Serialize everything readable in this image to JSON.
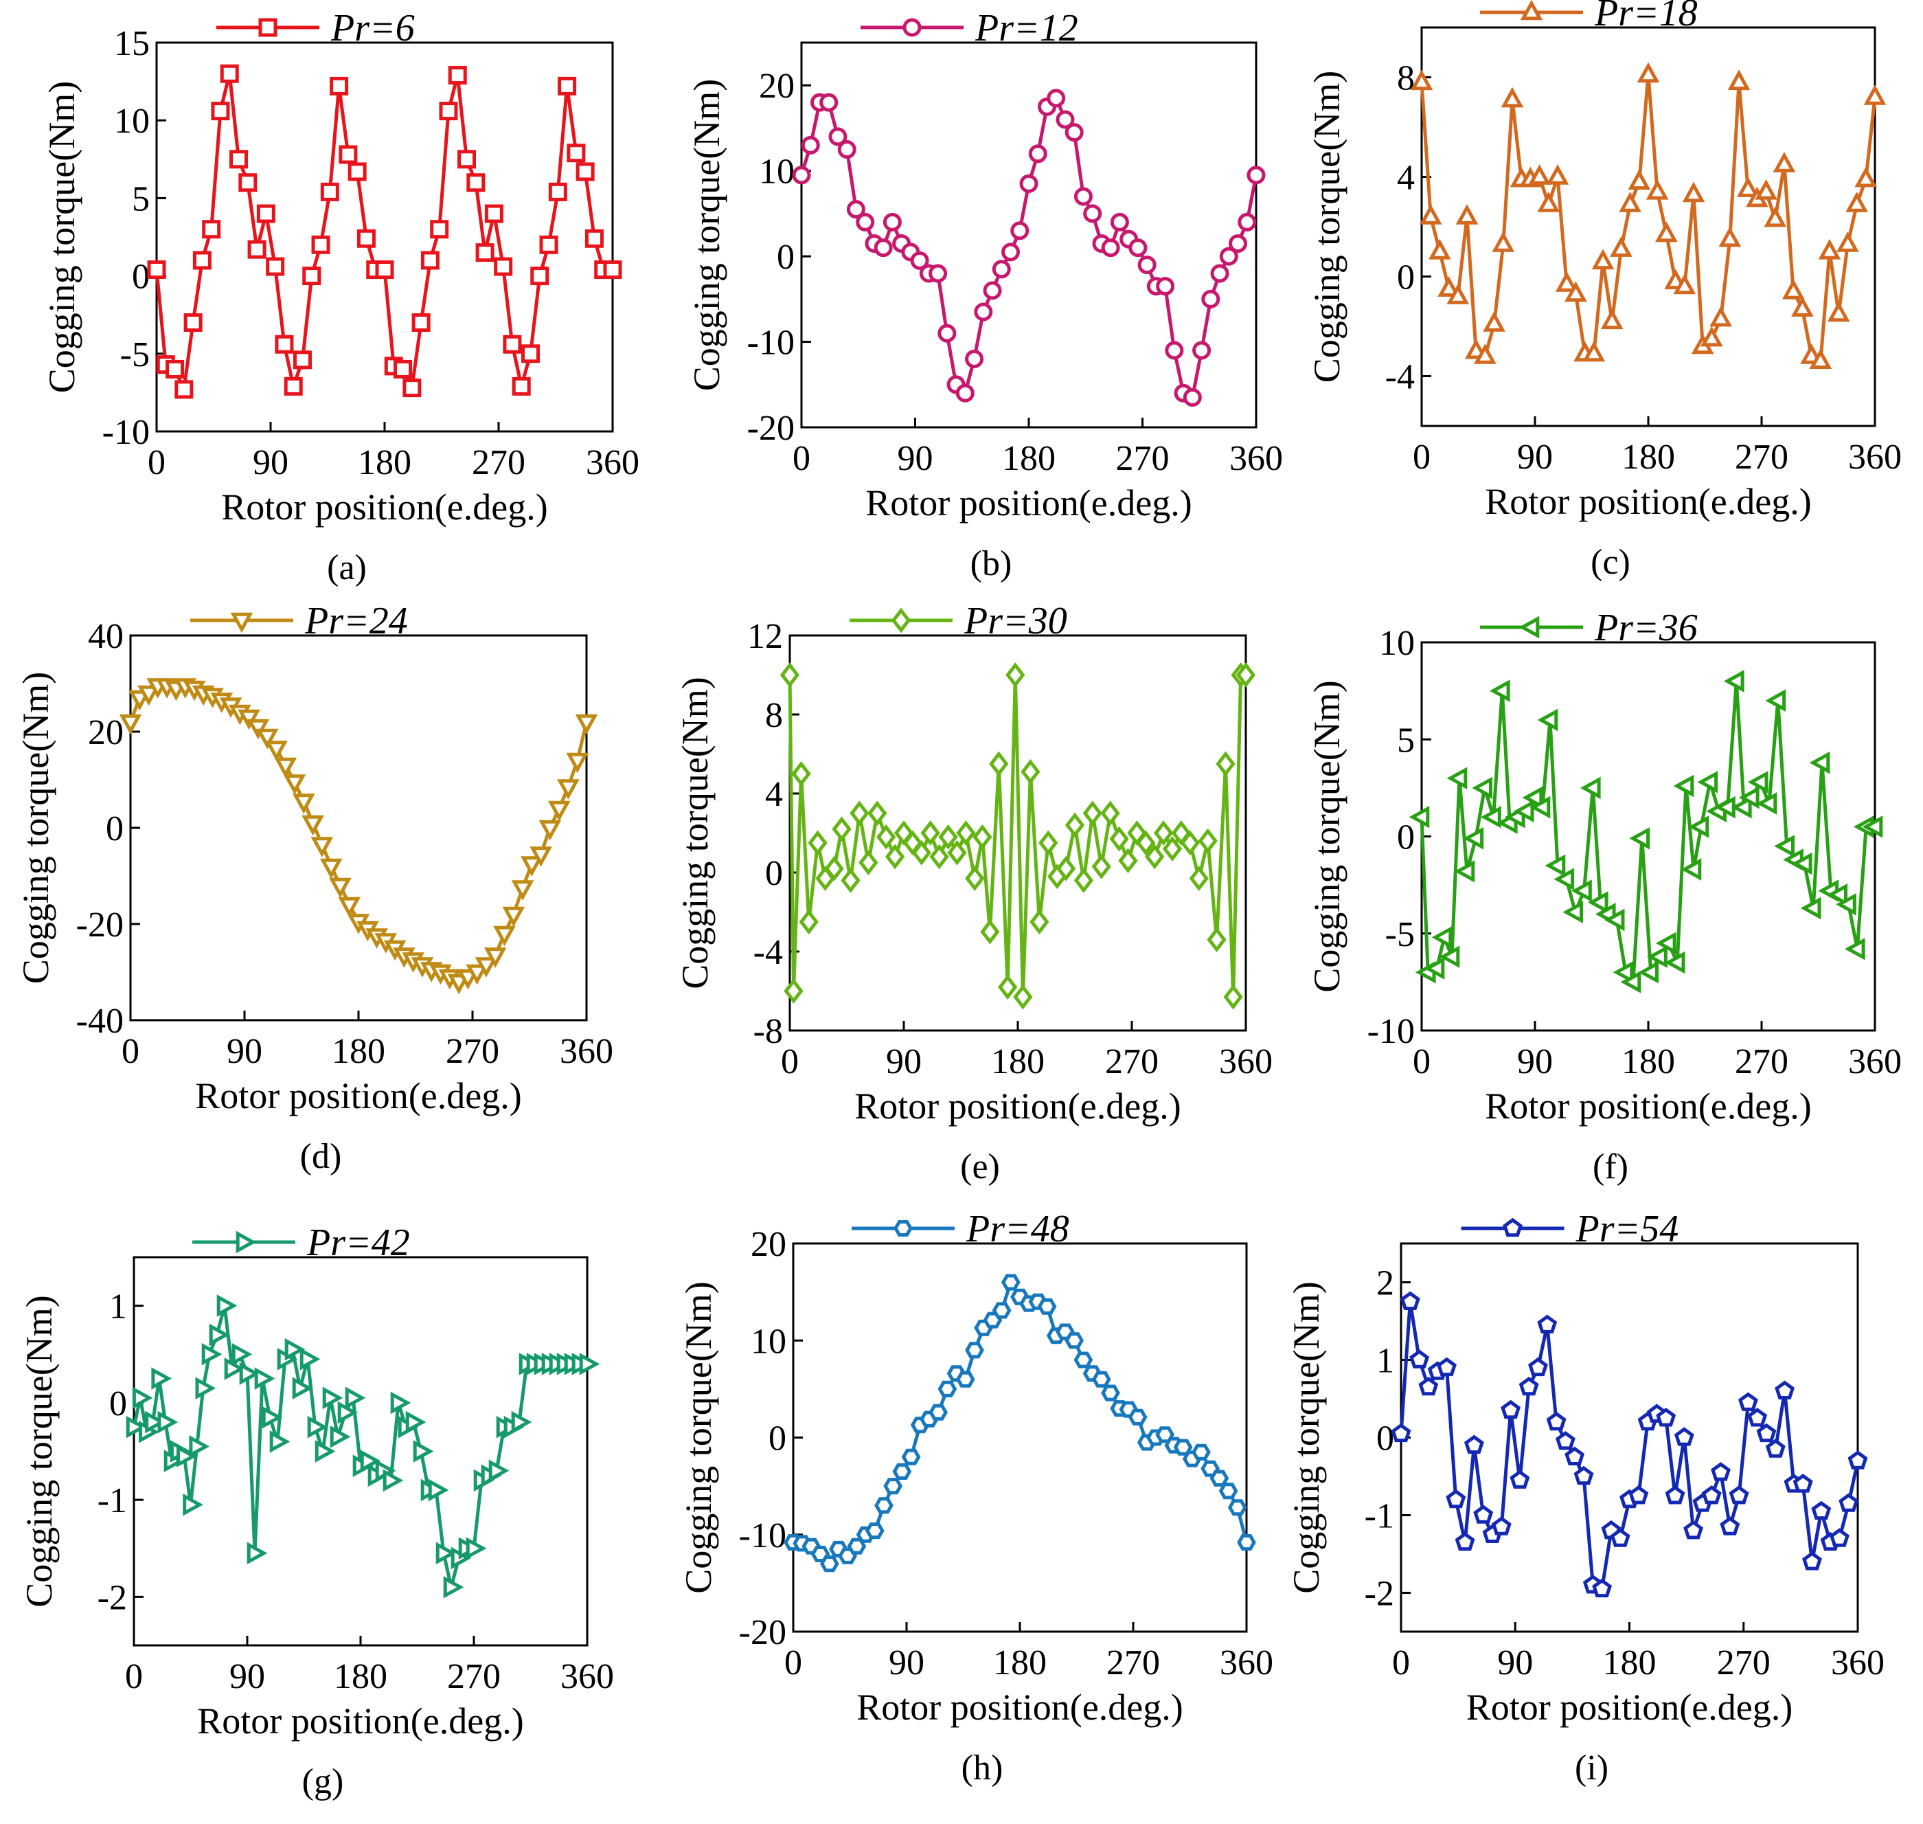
{
  "figure": {
    "x_axis_label": "Rotor position(e.deg.)",
    "y_axis_label": "Cogging torque(Nm)",
    "legend_prefix": "Pr="
  },
  "chart_data": [
    {
      "type": "line",
      "caption": "(a)",
      "legend": "Pr=6",
      "color": "#e8141c",
      "marker": "square",
      "xlabel": "Rotor position(e.deg.)",
      "ylabel": "Cogging torque(Nm)",
      "xlim": [
        0,
        360
      ],
      "ylim": [
        -10,
        15
      ],
      "xticks": [
        0,
        90,
        180,
        270,
        360
      ],
      "yticks": [
        -10,
        -5,
        0,
        5,
        10,
        15
      ],
      "x": [
        0,
        7.2,
        14.4,
        21.6,
        28.8,
        36,
        43.2,
        50.4,
        57.6,
        64.8,
        72,
        79.2,
        86.4,
        93.6,
        100.8,
        108,
        115.2,
        122.4,
        129.6,
        136.8,
        144,
        151.2,
        158.4,
        165.6,
        172.8,
        180,
        187.2,
        194.4,
        201.6,
        208.8,
        216,
        223.2,
        230.4,
        237.6,
        244.8,
        252,
        259.2,
        266.4,
        273.6,
        280.8,
        288,
        295.2,
        302.4,
        309.6,
        316.8,
        324,
        331.2,
        338.4,
        345.6,
        352.8,
        360
      ],
      "y": [
        0.4,
        -5.7,
        -6,
        -7.3,
        -3,
        1,
        3,
        10.6,
        13,
        7.5,
        6,
        1.7,
        4,
        0.6,
        -4.4,
        -7.1,
        -5.4,
        0,
        2,
        5.4,
        12.2,
        7.8,
        6.7,
        2.4,
        0.4,
        0.4,
        -5.8,
        -6,
        -7.2,
        -3,
        1,
        3,
        10.6,
        12.9,
        7.5,
        6,
        1.5,
        4,
        0.6,
        -4.4,
        -7.1,
        -5,
        0,
        2,
        5.4,
        12.2,
        7.9,
        6.7,
        2.4,
        0.4,
        0.4
      ]
    },
    {
      "type": "line",
      "caption": "(b)",
      "legend": "Pr=12",
      "color": "#c8186e",
      "marker": "circle",
      "xlabel": "Rotor position(e.deg.)",
      "ylabel": "Cogging torque(Nm)",
      "xlim": [
        0,
        360
      ],
      "ylim": [
        -20,
        25
      ],
      "xticks": [
        0,
        90,
        180,
        270,
        360
      ],
      "yticks": [
        -20,
        -10,
        0,
        10,
        20
      ],
      "x": [
        0,
        7.2,
        14.4,
        21.6,
        28.8,
        36,
        43.2,
        50.4,
        57.6,
        64.8,
        72,
        79.2,
        86.4,
        93.6,
        100.8,
        108,
        115.2,
        122.4,
        129.6,
        136.8,
        144,
        151.2,
        158.4,
        165.6,
        172.8,
        180,
        187.2,
        194.4,
        201.6,
        208.8,
        216,
        223.2,
        230.4,
        237.6,
        244.8,
        252,
        259.2,
        266.4,
        273.6,
        280.8,
        288,
        295.2,
        302.4,
        309.6,
        316.8,
        324,
        331.2,
        338.4,
        345.6,
        352.8,
        360
      ],
      "y": [
        9.5,
        13,
        18,
        18,
        14,
        12.5,
        5.5,
        4,
        1.5,
        1,
        4,
        1.5,
        0.5,
        -0.5,
        -2,
        -2,
        -9,
        -15,
        -16,
        -12,
        -6.5,
        -4,
        -1.5,
        0.5,
        3,
        8.5,
        12,
        17.5,
        18.5,
        16,
        14.5,
        7,
        5,
        1.5,
        1,
        4,
        2,
        1,
        -1,
        -3.5,
        -3.5,
        -11,
        -16,
        -16.5,
        -11,
        -5,
        -2,
        0,
        1.5,
        4,
        9.5
      ]
    },
    {
      "type": "line",
      "caption": "(c)",
      "legend": "Pr=18",
      "color": "#d2691e",
      "marker": "triangle-up",
      "xlabel": "Rotor position(e.deg.)",
      "ylabel": "Cogging torque(Nm)",
      "xlim": [
        0,
        360
      ],
      "ylim": [
        -6,
        10
      ],
      "xticks": [
        0,
        90,
        180,
        270,
        360
      ],
      "yticks": [
        -4,
        0,
        4,
        8
      ],
      "x": [
        0,
        7.2,
        14.4,
        21.6,
        28.8,
        36,
        43.2,
        50.4,
        57.6,
        64.8,
        72,
        79.2,
        86.4,
        93.6,
        100.8,
        108,
        115.2,
        122.4,
        129.6,
        136.8,
        144,
        151.2,
        158.4,
        165.6,
        172.8,
        180,
        187.2,
        194.4,
        201.6,
        208.8,
        216,
        223.2,
        230.4,
        237.6,
        244.8,
        252,
        259.2,
        266.4,
        273.6,
        280.8,
        288,
        295.2,
        302.4,
        309.6,
        316.8,
        324,
        331.2,
        338.4,
        345.6,
        352.8,
        360
      ],
      "y": [
        7.8,
        2.4,
        1,
        -0.5,
        -0.8,
        2.4,
        -3,
        -3.2,
        -1.9,
        1.3,
        7.1,
        3.9,
        3.9,
        4,
        2.9,
        4,
        -0.3,
        -0.7,
        -3.1,
        -3.1,
        0.6,
        -1.8,
        1.1,
        2.9,
        3.8,
        8.1,
        3.4,
        1.7,
        -0.2,
        -0.4,
        3.3,
        -2.8,
        -2.5,
        -1.7,
        1.5,
        7.8,
        3.5,
        3.1,
        3.4,
        2.3,
        4.5,
        -0.6,
        -1.3,
        -3.2,
        -3.4,
        1,
        -1.5,
        1.3,
        2.9,
        3.9,
        7.2
      ]
    },
    {
      "type": "line",
      "caption": "(d)",
      "legend": "Pr=24",
      "color": "#c08b14",
      "marker": "triangle-down",
      "xlabel": "Rotor position(e.deg.)",
      "ylabel": "Cogging torque(Nm)",
      "xlim": [
        0,
        360
      ],
      "ylim": [
        -40,
        40
      ],
      "xticks": [
        0,
        90,
        180,
        270,
        360
      ],
      "yticks": [
        -40,
        -20,
        0,
        20,
        40
      ],
      "x": [
        0,
        7.2,
        14.4,
        21.6,
        28.8,
        36,
        43.2,
        50.4,
        57.6,
        64.8,
        72,
        79.2,
        86.4,
        93.6,
        100.8,
        108,
        115.2,
        122.4,
        129.6,
        136.8,
        144,
        151.2,
        158.4,
        165.6,
        172.8,
        180,
        187.2,
        194.4,
        201.6,
        208.8,
        216,
        223.2,
        230.4,
        237.6,
        244.8,
        252,
        259.2,
        266.4,
        273.6,
        280.8,
        288,
        295.2,
        302.4,
        309.6,
        316.8,
        324,
        331.2,
        338.4,
        345.6,
        352.8,
        360
      ],
      "y": [
        22,
        27,
        28,
        29.5,
        29.5,
        29,
        29.5,
        29,
        28,
        27.5,
        26.5,
        25.5,
        24,
        23,
        21,
        19,
        16.5,
        13,
        9.5,
        5.5,
        1,
        -3.5,
        -8,
        -12,
        -16,
        -19.5,
        -21,
        -22.5,
        -23.5,
        -25,
        -26.5,
        -27.5,
        -28.5,
        -29.5,
        -30,
        -31,
        -32,
        -31,
        -30,
        -28.5,
        -26.5,
        -22,
        -18,
        -12.5,
        -7.5,
        -5.5,
        0,
        4,
        8.5,
        14,
        22
      ]
    },
    {
      "type": "line",
      "caption": "(e)",
      "legend": "Pr=30",
      "color": "#64b414",
      "marker": "diamond",
      "xlabel": "Rotor position(e.deg.)",
      "ylabel": "Cogging torque(Nm)",
      "xlim": [
        0,
        360
      ],
      "ylim": [
        -8,
        12
      ],
      "xticks": [
        0,
        90,
        180,
        270,
        360
      ],
      "yticks": [
        -8,
        -4,
        0,
        4,
        8,
        12
      ],
      "x": [
        0,
        3,
        9,
        15,
        22,
        28,
        35,
        41,
        48,
        55,
        62,
        69,
        76,
        83,
        90,
        97,
        104,
        111,
        118,
        125,
        132,
        139,
        146,
        152,
        158,
        165,
        172,
        178,
        184,
        190,
        197,
        204,
        211,
        218,
        225,
        232,
        239,
        246,
        253,
        260,
        267,
        274,
        281,
        288,
        295,
        302,
        309,
        316,
        323,
        330,
        337,
        344,
        350,
        356,
        360
      ],
      "y": [
        10,
        -6,
        5,
        -2.5,
        1.5,
        -0.3,
        0.2,
        2.2,
        -0.4,
        3,
        0.5,
        3,
        1.8,
        0.8,
        2,
        1.5,
        1,
        2,
        0.8,
        1.8,
        1,
        2,
        -0.3,
        1.8,
        -3,
        5.5,
        -5.8,
        10,
        -6.3,
        5.1,
        -2.5,
        1.5,
        -0.2,
        0.2,
        2.4,
        -0.4,
        3,
        0.3,
        3,
        1.7,
        0.6,
        2,
        1.5,
        0.8,
        2,
        1.2,
        2,
        1.5,
        -0.3,
        1.6,
        -3.4,
        5.5,
        -6.3,
        10,
        10
      ]
    },
    {
      "type": "line",
      "caption": "(f)",
      "legend": "Pr=36",
      "color": "#28a014",
      "marker": "triangle-left",
      "xlabel": "Rotor position(e.deg.)",
      "ylabel": "Cogging torque(Nm)",
      "xlim": [
        0,
        360
      ],
      "ylim": [
        -10,
        10
      ],
      "xticks": [
        0,
        90,
        180,
        270,
        360
      ],
      "yticks": [
        -10,
        -5,
        0,
        5,
        10
      ],
      "x": [
        0,
        5,
        12,
        18,
        24,
        30,
        36,
        43,
        50,
        57,
        64,
        70,
        76,
        83,
        90,
        96,
        102,
        108,
        115,
        122,
        129,
        136,
        142,
        148,
        155,
        162,
        168,
        175,
        182,
        189,
        196,
        203,
        210,
        216,
        222,
        229,
        236,
        243,
        250,
        256,
        262,
        269,
        276,
        283,
        290,
        297,
        304,
        311,
        318,
        325,
        332,
        339,
        346,
        353,
        360
      ],
      "y": [
        1,
        -7,
        -6.8,
        -5.2,
        -6.2,
        3,
        -1.8,
        -0.1,
        2.5,
        1,
        7.5,
        0.7,
        1,
        1.3,
        2,
        1.5,
        6,
        -1.5,
        -2.2,
        -3.9,
        -2.8,
        2.5,
        -3.4,
        -4,
        -4.3,
        -7,
        -7.5,
        -0.1,
        -7,
        -6.2,
        -5.5,
        -6.5,
        2.6,
        -1.7,
        0.5,
        2.8,
        1.3,
        1.5,
        8,
        1.5,
        2,
        2.8,
        1.7,
        7,
        -0.5,
        -1.2,
        -1.4,
        -3.7,
        3.8,
        -2.8,
        -3,
        -3.5,
        -5.8,
        0.5,
        0.5
      ]
    },
    {
      "type": "line",
      "caption": "(g)",
      "legend": "Pr=42",
      "color": "#169a6a",
      "marker": "triangle-right",
      "xlabel": "Rotor position(e.deg.)",
      "ylabel": "Cogging torque(Nm)",
      "xlim": [
        0,
        360
      ],
      "ylim": [
        -2.5,
        1.5
      ],
      "xticks": [
        0,
        90,
        180,
        270,
        360
      ],
      "yticks": [
        -2,
        -1,
        0,
        1
      ],
      "x": [
        0,
        5,
        10,
        15,
        20,
        25,
        30,
        35,
        40,
        45,
        50,
        55,
        60,
        66,
        72,
        78,
        84,
        90,
        96,
        102,
        108,
        114,
        120,
        126,
        132,
        138,
        144,
        150,
        156,
        162,
        168,
        174,
        180,
        186,
        192,
        198,
        204,
        210,
        216,
        222,
        228,
        234,
        240,
        246,
        252,
        258,
        264,
        270,
        276,
        282,
        288,
        294,
        300,
        306,
        312,
        318,
        324,
        330,
        336,
        342,
        348,
        354,
        360
      ],
      "y": [
        -0.25,
        0.05,
        -0.3,
        -0.2,
        0.25,
        -0.2,
        -0.6,
        -0.5,
        -0.55,
        -1.05,
        -0.45,
        0.15,
        0.5,
        0.7,
        1,
        0.35,
        0.5,
        0.3,
        -1.55,
        0.25,
        -0.15,
        -0.4,
        0.45,
        0.55,
        0.15,
        0.45,
        -0.25,
        -0.5,
        0.05,
        -0.35,
        -0.1,
        0.05,
        -0.65,
        -0.6,
        -0.75,
        -0.7,
        -0.8,
        0,
        -0.25,
        -0.2,
        -0.5,
        -0.9,
        -0.9,
        -1.55,
        -1.9,
        -1.6,
        -1.5,
        -1.5,
        -0.8,
        -0.75,
        -0.7,
        -0.25,
        -0.25,
        -0.2,
        0.4,
        0.4,
        0.4,
        0.4,
        0.4,
        0.4,
        0.4,
        0.4,
        0.4
      ]
    },
    {
      "type": "line",
      "caption": "(h)",
      "legend": "Pr=48",
      "color": "#1878be",
      "marker": "hexagon",
      "xlabel": "Rotor position(e.deg.)",
      "ylabel": "Cogging torque(Nm)",
      "xlim": [
        0,
        360
      ],
      "ylim": [
        -20,
        20
      ],
      "xticks": [
        0,
        90,
        180,
        270,
        360
      ],
      "yticks": [
        -20,
        -10,
        0,
        10,
        20
      ],
      "x": [
        0,
        7.2,
        14.4,
        21.6,
        28.8,
        36,
        43.2,
        50.4,
        57.6,
        64.8,
        72,
        79.2,
        86.4,
        93.6,
        100.8,
        108,
        115.2,
        122.4,
        129.6,
        136.8,
        144,
        151.2,
        158.4,
        165.6,
        172.8,
        180,
        187.2,
        194.4,
        201.6,
        208.8,
        216,
        223.2,
        230.4,
        237.6,
        244.8,
        252,
        259.2,
        266.4,
        273.6,
        280.8,
        288,
        295.2,
        302.4,
        309.6,
        316.8,
        324,
        331.2,
        338.4,
        345.6,
        352.8,
        360
      ],
      "y": [
        -10.8,
        -10.9,
        -11.2,
        -12,
        -13,
        -11.5,
        -12.2,
        -11.2,
        -10,
        -9.6,
        -7,
        -5,
        -3.5,
        -2,
        1.3,
        1.9,
        2.6,
        5,
        6.6,
        6,
        9,
        11.3,
        12.1,
        13.1,
        16,
        14.5,
        13.8,
        14,
        13.5,
        10.5,
        10.9,
        10,
        8,
        6.6,
        6,
        4.6,
        3,
        2.9,
        2.1,
        -0.5,
        0,
        0.3,
        -0.8,
        -1,
        -2.2,
        -1.5,
        -3.2,
        -4.2,
        -5.5,
        -7.2,
        -10.8
      ]
    },
    {
      "type": "line",
      "caption": "(i)",
      "legend": "Pr=54",
      "color": "#1428b4",
      "marker": "pentagon",
      "xlabel": "Rotor position(e.deg.)",
      "ylabel": "Cogging torque(Nm)",
      "xlim": [
        0,
        360
      ],
      "ylim": [
        -2.5,
        2.5
      ],
      "xticks": [
        0,
        90,
        180,
        270,
        360
      ],
      "yticks": [
        -2,
        -1,
        0,
        1,
        2
      ],
      "x": [
        0,
        7.2,
        14.4,
        21.6,
        28.8,
        36,
        43.2,
        50.4,
        57.6,
        64.8,
        72,
        79.2,
        86.4,
        93.6,
        100.8,
        108,
        115.2,
        122.4,
        129.6,
        136.8,
        144,
        151.2,
        158.4,
        165.6,
        172.8,
        180,
        187.2,
        194.4,
        201.6,
        208.8,
        216,
        223.2,
        230.4,
        237.6,
        244.8,
        252,
        259.2,
        266.4,
        273.6,
        280.8,
        288,
        295.2,
        302.4,
        309.6,
        316.8,
        324,
        331.2,
        338.4,
        345.6,
        352.8,
        360
      ],
      "y": [
        0.05,
        1.75,
        1,
        0.65,
        0.85,
        0.9,
        -0.8,
        -1.35,
        -0.1,
        -1,
        -1.25,
        -1.15,
        0.35,
        -0.55,
        0.65,
        0.9,
        1.45,
        0.2,
        -0.05,
        -0.25,
        -0.5,
        -1.9,
        -1.95,
        -1.2,
        -1.3,
        -0.8,
        -0.75,
        0.2,
        0.3,
        0.25,
        -0.75,
        0,
        -1.2,
        -0.85,
        -0.75,
        -0.45,
        -1.15,
        -0.75,
        0.45,
        0.25,
        0.05,
        -0.15,
        0.6,
        -0.6,
        -0.6,
        -1.6,
        -0.95,
        -1.35,
        -1.3,
        -0.85,
        -0.3
      ]
    }
  ]
}
